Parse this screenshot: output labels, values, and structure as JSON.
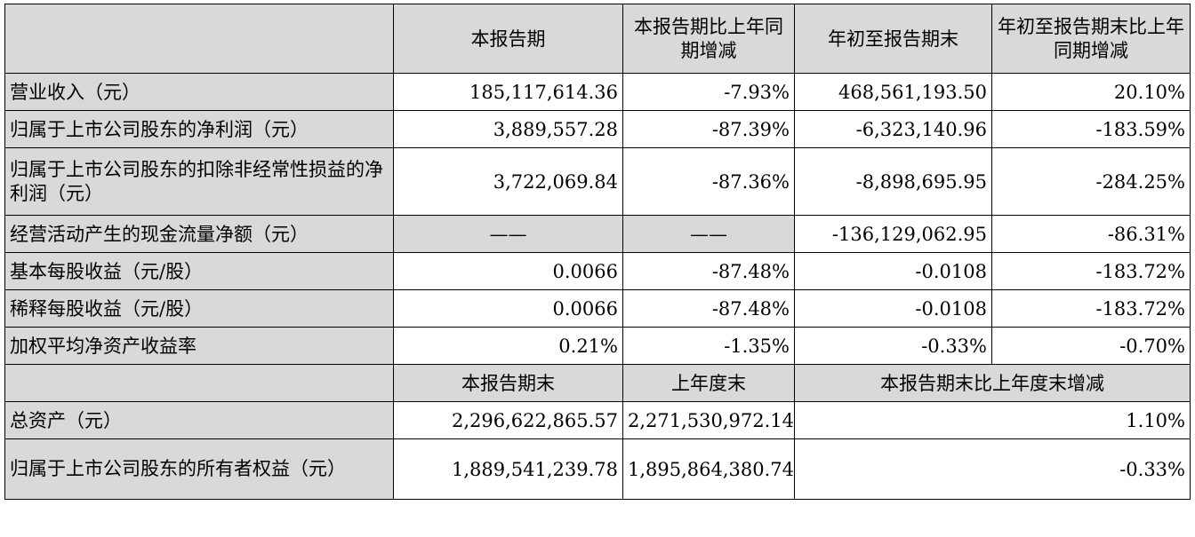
{
  "header_period": {
    "label_col": "",
    "columns": [
      "本报告期",
      "本报告期比上年同期增减",
      "年初至报告期末",
      "年初至报告期末比上年同期增减"
    ]
  },
  "rows_period": [
    {
      "label": "营业收入（元）",
      "values": [
        "185,117,614.36",
        "-7.93%",
        "468,561,193.50",
        "20.10%"
      ]
    },
    {
      "label": "归属于上市公司股东的净利润（元）",
      "values": [
        "3,889,557.28",
        "-87.39%",
        "-6,323,140.96",
        "-183.59%"
      ]
    },
    {
      "label": "归属于上市公司股东的扣除非经常性损益的净利润（元）",
      "values": [
        "3,722,069.84",
        "-87.36%",
        "-8,898,695.95",
        "-284.25%"
      ]
    },
    {
      "label": "经营活动产生的现金流量净额（元）",
      "values": [
        "——",
        "——",
        "-136,129,062.95",
        "-86.31%"
      ]
    },
    {
      "label": "基本每股收益（元/股）",
      "values": [
        "0.0066",
        "-87.48%",
        "-0.0108",
        "-183.72%"
      ]
    },
    {
      "label": "稀释每股收益（元/股）",
      "values": [
        "0.0066",
        "-87.48%",
        "-0.0108",
        "-183.72%"
      ]
    },
    {
      "label": "加权平均净资产收益率",
      "values": [
        "0.21%",
        "-1.35%",
        "-0.33%",
        "-0.70%"
      ]
    }
  ],
  "header_balance": {
    "label_col": "",
    "columns": [
      "本报告期末",
      "上年度末",
      "本报告期末比上年度末增减"
    ]
  },
  "rows_balance": [
    {
      "label": "总资产（元）",
      "values": [
        "2,296,622,865.57",
        "2,271,530,972.14",
        "1.10%"
      ]
    },
    {
      "label": "归属于上市公司股东的所有者权益（元）",
      "values": [
        "1,889,541,239.78",
        "1,895,864,380.74",
        "-0.33%"
      ]
    }
  ],
  "colors": {
    "label_bg": "#d9d9d9",
    "border": "#000000"
  }
}
